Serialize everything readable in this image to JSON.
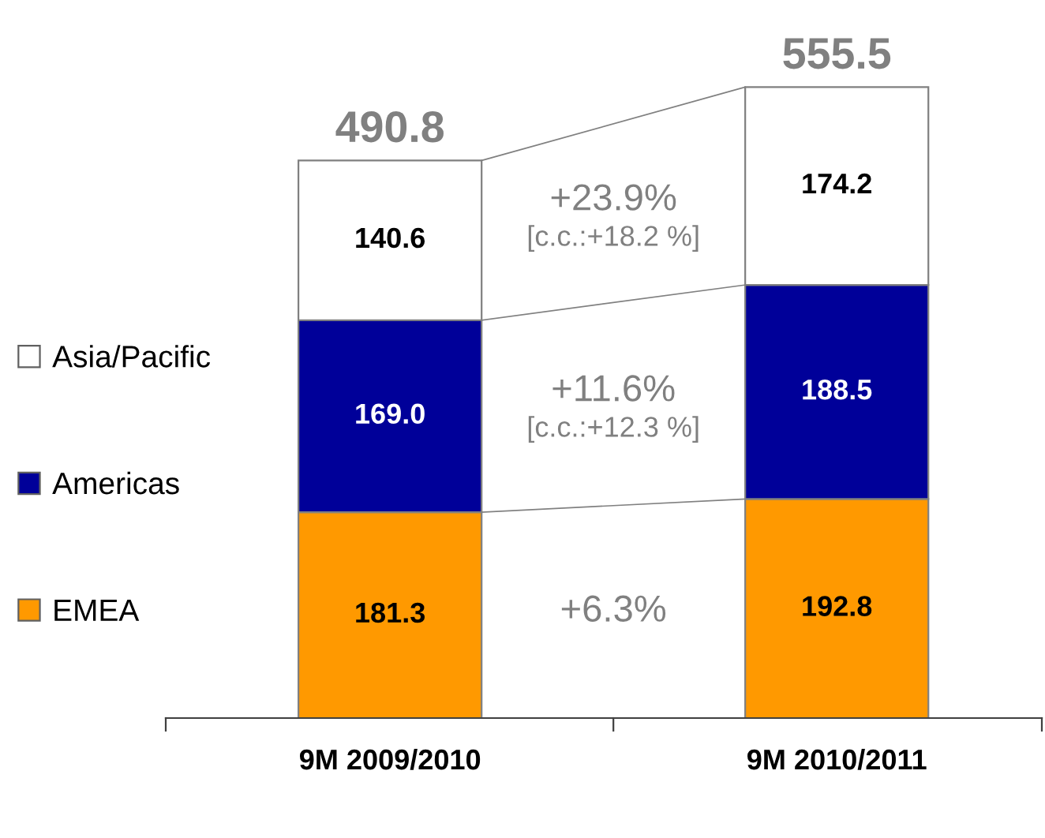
{
  "chart_data": {
    "type": "bar",
    "stacked": true,
    "categories": [
      "9M 2009/2010",
      "9M 2010/2011"
    ],
    "series": [
      {
        "name": "EMEA",
        "color": "#ff9900",
        "values": [
          181.3,
          192.8
        ],
        "value_labels": [
          "181.3",
          "192.8"
        ]
      },
      {
        "name": "Americas",
        "color": "#000099",
        "values": [
          169.0,
          188.5
        ],
        "value_labels": [
          "169.0",
          "188.5"
        ]
      },
      {
        "name": "Asia/Pacific",
        "color": "#ffffff",
        "values": [
          140.6,
          174.2
        ],
        "value_labels": [
          "140.6",
          "174.2"
        ]
      }
    ],
    "totals": [
      "490.8",
      "555.5"
    ],
    "annotations": [
      "+23.9%",
      "[c.c.:+18.2 %]",
      "+11.6%",
      "[c.c.:+12.3 %]",
      "+6.3%"
    ],
    "legend": "left",
    "grid": false
  }
}
